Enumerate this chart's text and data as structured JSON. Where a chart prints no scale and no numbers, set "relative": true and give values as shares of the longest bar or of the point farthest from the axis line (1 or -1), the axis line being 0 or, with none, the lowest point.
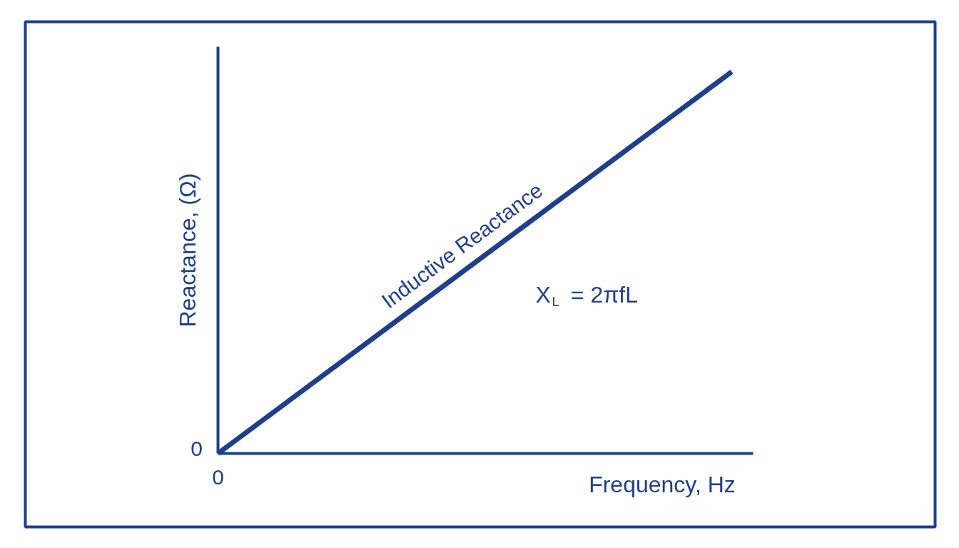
{
  "chart_data": {
    "type": "line",
    "relative": true,
    "xlabel": "Frequency, Hz",
    "ylabel": "Reactance, (Ω)",
    "categories": [
      null,
      null
    ],
    "series": [
      {
        "name": "Inductive Reactance",
        "color": "#1f3f8a",
        "values": [
          0,
          1
        ]
      }
    ],
    "annotations": [
      "X$_{L}$ = 2πfL",
      "0",
      "0"
    ],
    "grid": false
  }
}
